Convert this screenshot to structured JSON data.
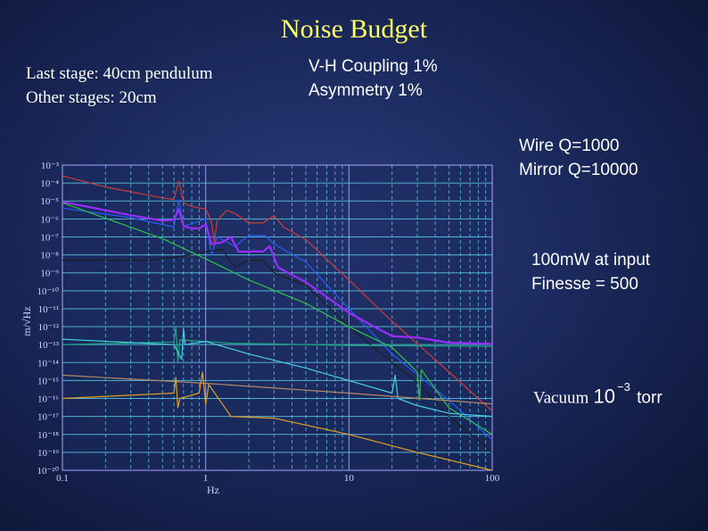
{
  "title": "Noise Budget",
  "notes": {
    "pendulum": [
      "Last stage: 40cm pendulum",
      "Other stages: 20cm"
    ],
    "coupling": [
      "V-H Coupling 1%",
      "Asymmetry 1%"
    ],
    "q": [
      "Wire Q=1000",
      "Mirror Q=10000"
    ],
    "laser": [
      "100mW at input",
      "Finesse = 500"
    ],
    "vacuum": {
      "label": "Vacuum",
      "base": "10",
      "exponent": "−3",
      "unit": "torr"
    }
  },
  "colors": {
    "title": "#ffff66",
    "grid_major": "#a6a6ff",
    "grid_minor": "#5cc8e8",
    "plot_bg": "#1a2a5c"
  },
  "chart_data": {
    "type": "line",
    "xscale": "log",
    "yscale": "log",
    "xlim": [
      0.1,
      100
    ],
    "ylim": [
      1e-20,
      0.001
    ],
    "xlabel": "Hz",
    "ylabel": "m/√Hz",
    "grid": true,
    "x_tick_labels": [
      "0.1",
      "1",
      "10",
      "100"
    ],
    "y_tick_labels": [
      "10⁻³",
      "10⁻⁴",
      "10⁻⁵",
      "10⁻⁶",
      "10⁻⁷",
      "10⁻⁸",
      "10⁻⁹",
      "10⁻¹⁰",
      "10⁻¹¹",
      "10⁻¹²",
      "10⁻¹³",
      "10⁻¹⁴",
      "10⁻¹⁵",
      "10⁻¹⁶",
      "10⁻¹⁷",
      "10⁻¹⁸",
      "10⁻¹⁹",
      "10⁻²⁰"
    ],
    "series": [
      {
        "color": "#d23a3a",
        "width": 1.2,
        "points": [
          [
            0.1,
            0.00025
          ],
          [
            0.2,
            6e-05
          ],
          [
            0.5,
            1.5e-05
          ],
          [
            0.6,
            1.2e-05
          ],
          [
            0.65,
            0.00013
          ],
          [
            0.7,
            8e-06
          ],
          [
            0.8,
            5e-06
          ],
          [
            1,
            3.5e-06
          ],
          [
            1.05,
            1.6e-06
          ],
          [
            1.1,
            6e-07
          ],
          [
            1.15,
            5e-08
          ],
          [
            1.2,
            8e-07
          ],
          [
            1.4,
            3e-06
          ],
          [
            1.6,
            2e-06
          ],
          [
            2,
            6e-07
          ],
          [
            2.5,
            6e-07
          ],
          [
            3,
            1.5e-06
          ],
          [
            3.5,
            3.5e-07
          ],
          [
            5,
            7e-08
          ],
          [
            10,
            4e-10
          ],
          [
            20,
            2e-12
          ],
          [
            50,
            3e-15
          ],
          [
            100,
            2e-17
          ]
        ]
      },
      {
        "color": "#2a5bff",
        "width": 1.2,
        "points": [
          [
            0.1,
            4e-06
          ],
          [
            0.3,
            1.2e-06
          ],
          [
            0.6,
            3.5e-07
          ],
          [
            0.65,
            1.2e-05
          ],
          [
            0.7,
            4e-07
          ],
          [
            1,
            1e-06
          ],
          [
            1.1,
            1e-08
          ],
          [
            1.2,
            1e-07
          ],
          [
            1.6,
            3e-08
          ],
          [
            2,
            1.2e-07
          ],
          [
            2.6,
            1.2e-07
          ],
          [
            3,
            4e-08
          ],
          [
            5,
            4e-09
          ],
          [
            10,
            1e-11
          ],
          [
            20,
            3e-14
          ],
          [
            50,
            8e-17
          ],
          [
            100,
            5e-19
          ]
        ]
      },
      {
        "color": "#9b2cff",
        "width": 2.2,
        "points": [
          [
            0.1,
            9e-06
          ],
          [
            0.3,
            1.6e-06
          ],
          [
            0.5,
            8e-07
          ],
          [
            0.6,
            9e-07
          ],
          [
            0.65,
            3.5e-06
          ],
          [
            0.7,
            4e-07
          ],
          [
            0.8,
            3e-07
          ],
          [
            0.9,
            3e-07
          ],
          [
            1,
            5e-07
          ],
          [
            1.1,
            4e-08
          ],
          [
            1.3,
            5e-08
          ],
          [
            1.5,
            1e-07
          ],
          [
            1.7,
            1.5e-08
          ],
          [
            2,
            1.5e-08
          ],
          [
            2.2,
            1.6e-08
          ],
          [
            2.5,
            1.5e-08
          ],
          [
            2.8,
            3e-08
          ],
          [
            3.2,
            2e-09
          ],
          [
            5,
            3e-10
          ],
          [
            10,
            6e-12
          ],
          [
            15,
            1e-12
          ],
          [
            20,
            3e-13
          ],
          [
            30,
            2.5e-13
          ],
          [
            50,
            1.3e-13
          ],
          [
            100,
            1.1e-13
          ]
        ]
      },
      {
        "color": "#1e1e1e",
        "width": 1.2,
        "points": [
          [
            0.1,
            5e-09
          ],
          [
            0.4,
            5e-09
          ],
          [
            0.65,
            8e-09
          ],
          [
            1,
            1.5e-08
          ],
          [
            1.3,
            2e-08
          ],
          [
            1.6,
            2e-09
          ],
          [
            2,
            5e-09
          ],
          [
            2.5,
            5e-09
          ],
          [
            3,
            1e-09
          ],
          [
            5,
            2e-10
          ],
          [
            10,
            1e-12
          ],
          [
            20,
            1e-14
          ],
          [
            30,
            8e-16
          ],
          [
            50,
            1e-17
          ],
          [
            100,
            1e-19
          ]
        ]
      },
      {
        "color": "#2fc24a",
        "width": 1.2,
        "points": [
          [
            0.1,
            8e-06
          ],
          [
            0.5,
            8e-08
          ],
          [
            1,
            6e-09
          ],
          [
            2,
            4e-10
          ],
          [
            5,
            2e-11
          ],
          [
            10,
            1e-12
          ],
          [
            20,
            7e-14
          ],
          [
            30,
            3e-15
          ],
          [
            31,
            8e-17
          ],
          [
            32,
            4e-15
          ],
          [
            50,
            3e-17
          ],
          [
            100,
            1e-18
          ]
        ]
      },
      {
        "color": "#1aa87a",
        "width": 1.2,
        "points": [
          [
            0.1,
            1e-13
          ],
          [
            0.6,
            1.4e-13
          ],
          [
            0.62,
            1e-12
          ],
          [
            0.64,
            1e-14
          ],
          [
            0.66,
            1.8e-13
          ],
          [
            1,
            1.5e-13
          ],
          [
            1.5,
            1.2e-13
          ],
          [
            3,
            1.1e-13
          ],
          [
            5,
            1e-13
          ],
          [
            10,
            9e-14
          ],
          [
            100,
            8e-14
          ]
        ]
      },
      {
        "color": "#44d0e0",
        "width": 1.2,
        "points": [
          [
            0.1,
            2e-13
          ],
          [
            0.6,
            1e-13
          ],
          [
            0.68,
            1.5e-14
          ],
          [
            0.7,
            8e-13
          ],
          [
            0.72,
            1e-13
          ],
          [
            1,
            1.5e-13
          ],
          [
            2,
            3e-14
          ],
          [
            5,
            5e-15
          ],
          [
            10,
            1e-15
          ],
          [
            20,
            2e-16
          ],
          [
            21,
            2e-15
          ],
          [
            22,
            1e-16
          ],
          [
            30,
            4e-17
          ],
          [
            50,
            1.5e-17
          ],
          [
            100,
            1e-17
          ]
        ]
      },
      {
        "color": "#b08868",
        "width": 1.2,
        "points": [
          [
            0.1,
            2e-15
          ],
          [
            1,
            7e-16
          ],
          [
            10,
            2e-16
          ],
          [
            100,
            5e-17
          ]
        ]
      },
      {
        "color": "#e0a020",
        "width": 1.2,
        "points": [
          [
            0.1,
            1e-16
          ],
          [
            0.6,
            2e-16
          ],
          [
            0.62,
            1.5e-15
          ],
          [
            0.64,
            3e-17
          ],
          [
            0.66,
            1e-16
          ],
          [
            0.9,
            2e-16
          ],
          [
            0.95,
            3e-15
          ],
          [
            1,
            5e-17
          ],
          [
            1.05,
            6e-16
          ],
          [
            1.5,
            1e-17
          ],
          [
            3,
            8e-18
          ],
          [
            10,
            1e-18
          ],
          [
            30,
            1e-19
          ],
          [
            100,
            1e-20
          ]
        ]
      }
    ]
  }
}
